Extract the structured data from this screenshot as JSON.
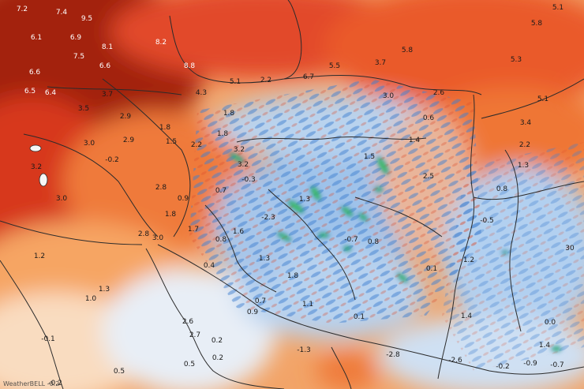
{
  "map": {
    "colors": {
      "deep_red": "#8e1b12",
      "red": "#d7381b",
      "orange": "#ee6a2a",
      "light_orange": "#f7a260",
      "pale": "#fbe3c7",
      "pale_blue": "#dce9f6",
      "blue": "#5a93d6",
      "deep_blue": "#1f5fb8",
      "green": "#3fc25a",
      "border": "#2b2b2b"
    },
    "labels": [
      {
        "text": "7.2"
      },
      {
        "text": "7.4"
      },
      {
        "text": "9.5"
      },
      {
        "text": "6.1"
      },
      {
        "text": "6.9"
      },
      {
        "text": "8.1"
      },
      {
        "text": "8.2"
      },
      {
        "text": "7.5"
      },
      {
        "text": "6.6"
      },
      {
        "text": "6.6"
      },
      {
        "text": "8.8"
      },
      {
        "text": "6.5"
      },
      {
        "text": "6.4"
      },
      {
        "text": "3.7"
      },
      {
        "text": "4.3"
      },
      {
        "text": "5.1"
      },
      {
        "text": "2.2"
      },
      {
        "text": "6.7"
      },
      {
        "text": "5.5"
      },
      {
        "text": "3.7"
      },
      {
        "text": "5.8"
      },
      {
        "text": "5.3"
      },
      {
        "text": "5.8"
      },
      {
        "text": "5.1"
      },
      {
        "text": "5.1"
      },
      {
        "text": "3.5"
      },
      {
        "text": "2.9"
      },
      {
        "text": "1.8"
      },
      {
        "text": "1.8"
      },
      {
        "text": "3.0"
      },
      {
        "text": "2.6"
      },
      {
        "text": "0.6"
      },
      {
        "text": "3.4"
      },
      {
        "text": "3.0"
      },
      {
        "text": "2.9"
      },
      {
        "text": "1.5"
      },
      {
        "text": "2.2"
      },
      {
        "text": "1.8"
      },
      {
        "text": "1.4"
      },
      {
        "text": "2.2"
      },
      {
        "text": "3.2"
      },
      {
        "text": "-0.2"
      },
      {
        "text": "3.2"
      },
      {
        "text": "1.5"
      },
      {
        "text": "1.3"
      },
      {
        "text": "3.2"
      },
      {
        "text": "-0.3"
      },
      {
        "text": "2.8"
      },
      {
        "text": "0.7"
      },
      {
        "text": "2.5"
      },
      {
        "text": "0.8"
      },
      {
        "text": "3.0"
      },
      {
        "text": "0.9"
      },
      {
        "text": "1.3"
      },
      {
        "text": "1.8"
      },
      {
        "text": "-2.3"
      },
      {
        "text": "-0.5"
      },
      {
        "text": "2.8"
      },
      {
        "text": "1.7"
      },
      {
        "text": "1.6"
      },
      {
        "text": "3.0"
      },
      {
        "text": "0.8"
      },
      {
        "text": "-0.7"
      },
      {
        "text": "0.8"
      },
      {
        "text": "1.2"
      },
      {
        "text": "30"
      },
      {
        "text": "1.3"
      },
      {
        "text": "0.4"
      },
      {
        "text": "0.1"
      },
      {
        "text": "1.2"
      },
      {
        "text": "1.8"
      },
      {
        "text": "1.3"
      },
      {
        "text": "1.0"
      },
      {
        "text": "0.7"
      },
      {
        "text": "1.1"
      },
      {
        "text": "0.9"
      },
      {
        "text": "2.6"
      },
      {
        "text": "0.1"
      },
      {
        "text": "1.4"
      },
      {
        "text": "0.0"
      },
      {
        "text": "-0.1"
      },
      {
        "text": "2.7"
      },
      {
        "text": "0.2"
      },
      {
        "text": "0.2"
      },
      {
        "text": "-1.3"
      },
      {
        "text": "1.4"
      },
      {
        "text": "0.5"
      },
      {
        "text": "0.5"
      },
      {
        "text": "-2.8"
      },
      {
        "text": "-2.6"
      },
      {
        "text": "-0.2"
      },
      {
        "text": "-0.9"
      },
      {
        "text": "-0.7"
      },
      {
        "text": "-0.2"
      }
    ],
    "watermark": "WeatherBELL -0.2"
  }
}
